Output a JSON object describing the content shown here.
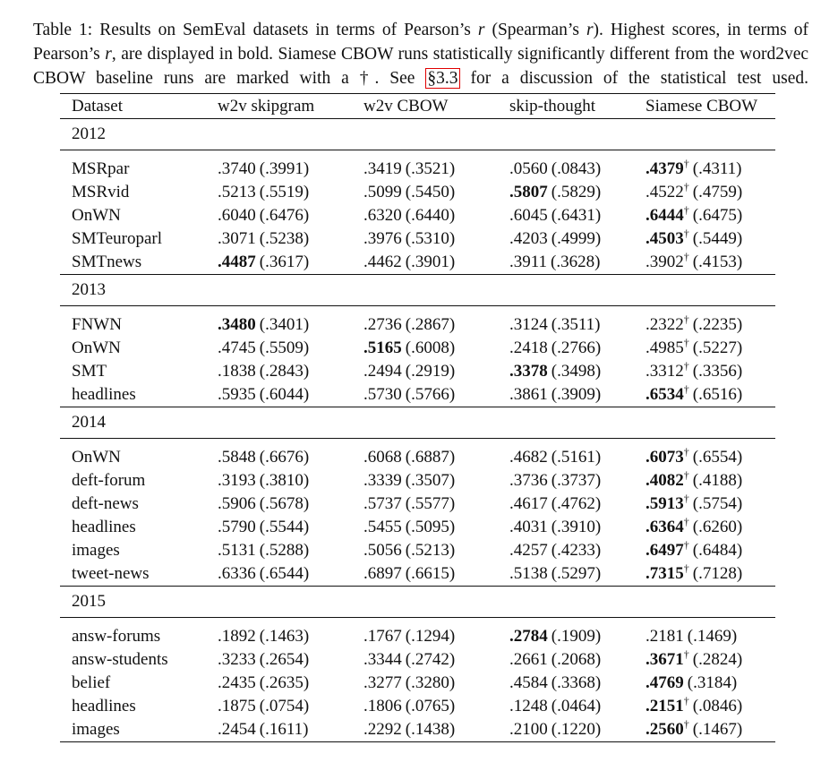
{
  "caption": [
    "Table 1: Results on SemEval datasets in terms of Pearson’s ",
    "r",
    " (Spearman’s ",
    "r",
    "). Highest scores, in terms of Pearson’s ",
    "r",
    ", are displayed in bold. Siamese CBOW runs statistically significantly different from the word2vec CBOW baseline runs are marked with a †. See ",
    "§3.3",
    " for a discussion of the statistical test used."
  ],
  "table": {
    "header": [
      "Dataset",
      "w2v skipgram",
      "w2v CBOW",
      "skip-thought",
      "Siamese CBOW"
    ],
    "groups": [
      {
        "year": "2012",
        "rows": [
          [
            "MSRpar",
            {
              "r": ".3740",
              "rho": "(.3991)"
            },
            {
              "r": ".3419",
              "rho": "(.3521)"
            },
            {
              "r": ".0560",
              "rho": "(.0843)"
            },
            {
              "r": ".4379",
              "mark": "†",
              "rho": "(.4311)",
              "bold": true
            }
          ],
          [
            "MSRvid",
            {
              "r": ".5213",
              "rho": "(.5519)"
            },
            {
              "r": ".5099",
              "rho": "(.5450)"
            },
            {
              "r": ".5807",
              "rho": "(.5829)",
              "bold": true
            },
            {
              "r": ".4522",
              "mark": "†",
              "rho": "(.4759)"
            }
          ],
          [
            "OnWN",
            {
              "r": ".6040",
              "rho": "(.6476)"
            },
            {
              "r": ".6320",
              "rho": "(.6440)"
            },
            {
              "r": ".6045",
              "rho": "(.6431)"
            },
            {
              "r": ".6444",
              "mark": "†",
              "rho": "(.6475)",
              "bold": true
            }
          ],
          [
            "SMTeuroparl",
            {
              "r": ".3071",
              "rho": "(.5238)"
            },
            {
              "r": ".3976",
              "rho": "(.5310)"
            },
            {
              "r": ".4203",
              "rho": "(.4999)"
            },
            {
              "r": ".4503",
              "mark": "†",
              "rho": "(.5449)",
              "bold": true
            }
          ],
          [
            "SMTnews",
            {
              "r": ".4487",
              "rho": "(.3617)",
              "bold": true
            },
            {
              "r": ".4462",
              "rho": "(.3901)"
            },
            {
              "r": ".3911",
              "rho": "(.3628)"
            },
            {
              "r": ".3902",
              "mark": "†",
              "rho": "(.4153)"
            }
          ]
        ]
      },
      {
        "year": "2013",
        "rows": [
          [
            "FNWN",
            {
              "r": ".3480",
              "rho": "(.3401)",
              "bold": true
            },
            {
              "r": ".2736",
              "rho": "(.2867)"
            },
            {
              "r": ".3124",
              "rho": "(.3511)"
            },
            {
              "r": ".2322",
              "mark": "†",
              "rho": "(.2235)"
            }
          ],
          [
            "OnWN",
            {
              "r": ".4745",
              "rho": "(.5509)"
            },
            {
              "r": ".5165",
              "rho": "(.6008)",
              "bold": true
            },
            {
              "r": ".2418",
              "rho": "(.2766)"
            },
            {
              "r": ".4985",
              "mark": "†",
              "rho": "(.5227)"
            }
          ],
          [
            "SMT",
            {
              "r": ".1838",
              "rho": "(.2843)"
            },
            {
              "r": ".2494",
              "rho": "(.2919)"
            },
            {
              "r": ".3378",
              "rho": "(.3498)",
              "bold": true
            },
            {
              "r": ".3312",
              "mark": "†",
              "rho": "(.3356)"
            }
          ],
          [
            "headlines",
            {
              "r": ".5935",
              "rho": "(.6044)"
            },
            {
              "r": ".5730",
              "rho": "(.5766)"
            },
            {
              "r": ".3861",
              "rho": "(.3909)"
            },
            {
              "r": ".6534",
              "mark": "†",
              "rho": "(.6516)",
              "bold": true
            }
          ]
        ]
      },
      {
        "year": "2014",
        "rows": [
          [
            "OnWN",
            {
              "r": ".5848",
              "rho": "(.6676)"
            },
            {
              "r": ".6068",
              "rho": "(.6887)"
            },
            {
              "r": ".4682",
              "rho": "(.5161)"
            },
            {
              "r": ".6073",
              "mark": "†",
              "rho": "(.6554)",
              "bold": true
            }
          ],
          [
            "deft-forum",
            {
              "r": ".3193",
              "rho": "(.3810)"
            },
            {
              "r": ".3339",
              "rho": "(.3507)"
            },
            {
              "r": ".3736",
              "rho": "(.3737)"
            },
            {
              "r": ".4082",
              "mark": "†",
              "rho": "(.4188)",
              "bold": true
            }
          ],
          [
            "deft-news",
            {
              "r": ".5906",
              "rho": "(.5678)"
            },
            {
              "r": ".5737",
              "rho": "(.5577)"
            },
            {
              "r": ".4617",
              "rho": "(.4762)"
            },
            {
              "r": ".5913",
              "mark": "†",
              "rho": "(.5754)",
              "bold": true
            }
          ],
          [
            "headlines",
            {
              "r": ".5790",
              "rho": "(.5544)"
            },
            {
              "r": ".5455",
              "rho": "(.5095)"
            },
            {
              "r": ".4031",
              "rho": "(.3910)"
            },
            {
              "r": ".6364",
              "mark": "†",
              "rho": "(.6260)",
              "bold": true
            }
          ],
          [
            "images",
            {
              "r": ".5131",
              "rho": "(.5288)"
            },
            {
              "r": ".5056",
              "rho": "(.5213)"
            },
            {
              "r": ".4257",
              "rho": "(.4233)"
            },
            {
              "r": ".6497",
              "mark": "†",
              "rho": "(.6484)",
              "bold": true
            }
          ],
          [
            "tweet-news",
            {
              "r": ".6336",
              "rho": "(.6544)"
            },
            {
              "r": ".6897",
              "rho": "(.6615)"
            },
            {
              "r": ".5138",
              "rho": "(.5297)"
            },
            {
              "r": ".7315",
              "mark": "†",
              "rho": "(.7128)",
              "bold": true
            }
          ]
        ]
      },
      {
        "year": "2015",
        "rows": [
          [
            "answ-forums",
            {
              "r": ".1892",
              "rho": "(.1463)"
            },
            {
              "r": ".1767",
              "rho": "(.1294)"
            },
            {
              "r": ".2784",
              "rho": "(.1909)",
              "bold": true
            },
            {
              "r": ".2181",
              "rho": "(.1469)"
            }
          ],
          [
            "answ-students",
            {
              "r": ".3233",
              "rho": "(.2654)"
            },
            {
              "r": ".3344",
              "rho": "(.2742)"
            },
            {
              "r": ".2661",
              "rho": "(.2068)"
            },
            {
              "r": ".3671",
              "mark": "†",
              "rho": "(.2824)",
              "bold": true
            }
          ],
          [
            "belief",
            {
              "r": ".2435",
              "rho": "(.2635)"
            },
            {
              "r": ".3277",
              "rho": "(.3280)"
            },
            {
              "r": ".4584",
              "rho": "(.3368)"
            },
            {
              "r": ".4769",
              "rho": "(.3184)",
              "bold": true
            }
          ],
          [
            "headlines",
            {
              "r": ".1875",
              "rho": "(.0754)"
            },
            {
              "r": ".1806",
              "rho": "(.0765)"
            },
            {
              "r": ".1248",
              "rho": "(.0464)"
            },
            {
              "r": ".2151",
              "mark": "†",
              "rho": "(.0846)",
              "bold": true
            }
          ],
          [
            "images",
            {
              "r": ".2454",
              "rho": "(.1611)"
            },
            {
              "r": ".2292",
              "rho": "(.1438)"
            },
            {
              "r": ".2100",
              "rho": "(.1220)"
            },
            {
              "r": ".2560",
              "mark": "†",
              "rho": "(.1467)",
              "bold": true
            }
          ]
        ]
      }
    ]
  }
}
